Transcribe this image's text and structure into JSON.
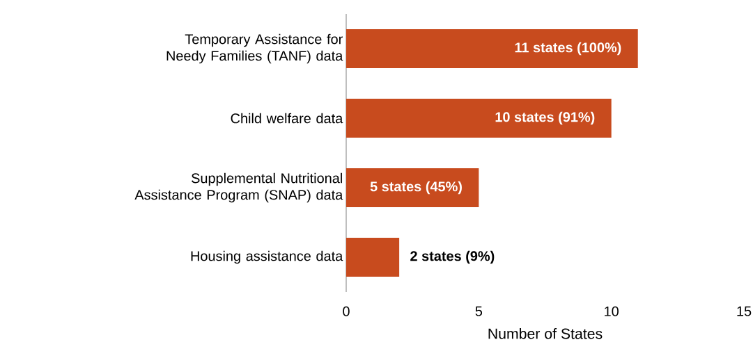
{
  "chart_data": {
    "type": "bar",
    "orientation": "horizontal",
    "categories": [
      "Temporary Assistance for Needy Families (TANF) data",
      "Child welfare data",
      "Supplemental Nutritional Assistance Program (SNAP) data",
      "Housing assistance data"
    ],
    "values": [
      11,
      10,
      5,
      2
    ],
    "value_labels": [
      "11 states (100%)",
      "10 states (91%)",
      "5 states (45%)",
      "2 states (9%)"
    ],
    "color": "#c84b1e",
    "xlim": [
      0,
      15
    ],
    "xticks": [
      0,
      5,
      10,
      15
    ],
    "xlabel": "Number of States"
  }
}
